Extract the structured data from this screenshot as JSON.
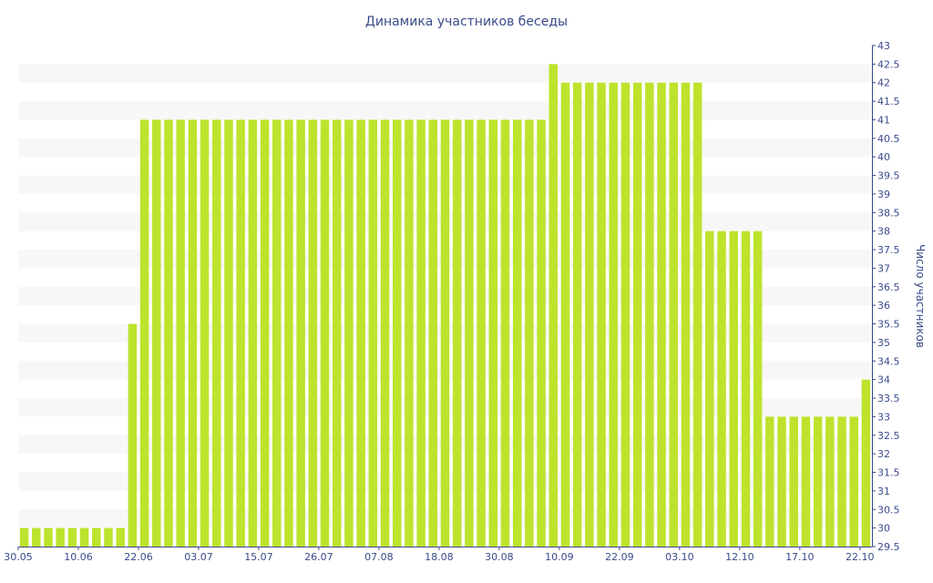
{
  "chart_data": {
    "type": "bar",
    "title": "Динамика участников беседы",
    "xlabel": "",
    "ylabel": "Число участников",
    "ylim": [
      29.5,
      43
    ],
    "ytick_step": 0.5,
    "y_axis_side": "right",
    "grid": "alternating horizontal bands",
    "legend": "none",
    "bar_color": "#bde32d",
    "x_tick_labels": [
      "30.05",
      "10.06",
      "22.06",
      "03.07",
      "15.07",
      "26.07",
      "07.08",
      "18.08",
      "30.08",
      "10.09",
      "22.09",
      "03.10",
      "12.10",
      "17.10",
      "22.10"
    ],
    "x_tick_positions": [
      0,
      5,
      10,
      15,
      20,
      25,
      30,
      35,
      40,
      45,
      50,
      55,
      60,
      65,
      70
    ],
    "values": [
      30,
      30,
      30,
      30,
      30,
      30,
      30,
      30,
      30,
      35.5,
      41,
      41,
      41,
      41,
      41,
      41,
      41,
      41,
      41,
      41,
      41,
      41,
      41,
      41,
      41,
      41,
      41,
      41,
      41,
      41,
      41,
      41,
      41,
      41,
      41,
      41,
      41,
      41,
      41,
      41,
      41,
      41,
      41,
      41,
      42.5,
      42,
      42,
      42,
      42,
      42,
      42,
      42,
      42,
      42,
      42,
      42,
      42,
      38,
      38,
      38,
      38,
      38,
      33,
      33,
      33,
      33,
      33,
      33,
      33,
      33,
      34
    ]
  }
}
